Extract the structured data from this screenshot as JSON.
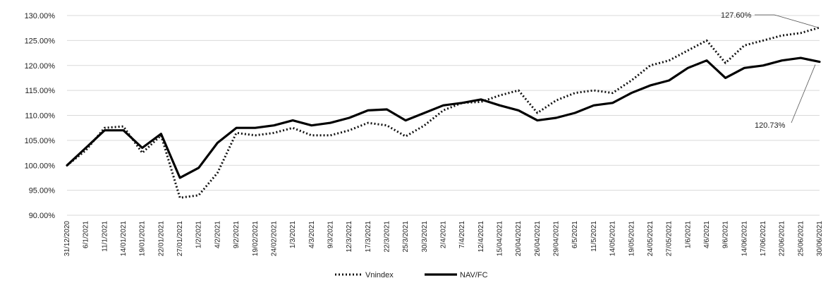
{
  "chart_data": {
    "type": "line",
    "y_tick_labels": [
      "90.00%",
      "95.00%",
      "100.00%",
      "105.00%",
      "110.00%",
      "115.00%",
      "120.00%",
      "125.00%",
      "130.00%"
    ],
    "ylim": [
      90,
      130
    ],
    "grid": "horizontal",
    "legend_position": "bottom-center",
    "x_tick_labels": [
      "31/12/2020",
      "6/1/2021",
      "11/1/2021",
      "14/01/2021",
      "19/01/2021",
      "22/01/2021",
      "27/01/2021",
      "1/2/2021",
      "4/2/2021",
      "9/2/2021",
      "19/02/2021",
      "24/02/2021",
      "1/3/2021",
      "4/3/2021",
      "9/3/2021",
      "12/3/2021",
      "17/3/2021",
      "22/3/2021",
      "25/3/2021",
      "30/3/2021",
      "2/4/2021",
      "7/4/2021",
      "12/4/2021",
      "15/04/2021",
      "20/04/2021",
      "26/04/2021",
      "29/04/2021",
      "6/5/2021",
      "11/5/2021",
      "14/05/2021",
      "19/05/2021",
      "24/05/2021",
      "27/05/2021",
      "1/6/2021",
      "4/6/2021",
      "9/6/2021",
      "14/06/2021",
      "17/06/2021",
      "22/06/2021",
      "25/06/2021",
      "30/06/2021"
    ],
    "series": [
      {
        "name": "Vnindex",
        "style": "dotted",
        "color": "#111111",
        "values": [
          100.0,
          103.0,
          107.5,
          107.8,
          102.5,
          106.0,
          93.5,
          94.0,
          98.5,
          106.5,
          106.0,
          106.5,
          107.5,
          106.0,
          106.0,
          107.0,
          108.5,
          108.0,
          105.8,
          108.0,
          111.0,
          112.5,
          112.7,
          114.0,
          115.0,
          110.5,
          113.0,
          114.5,
          115.0,
          114.5,
          117.0,
          120.0,
          121.0,
          123.0,
          125.0,
          120.5,
          124.0,
          125.0,
          126.0,
          126.5,
          127.6
        ]
      },
      {
        "name": "NAV/FC",
        "style": "solid",
        "color": "#000000",
        "values": [
          100.0,
          103.5,
          107.0,
          107.0,
          103.5,
          106.3,
          97.5,
          99.5,
          104.5,
          107.5,
          107.5,
          108.0,
          109.0,
          108.0,
          108.5,
          109.5,
          111.0,
          111.2,
          109.0,
          110.5,
          112.0,
          112.5,
          113.2,
          112.0,
          111.0,
          109.0,
          109.5,
          110.5,
          112.0,
          112.5,
          114.5,
          116.0,
          117.0,
          119.5,
          121.0,
          117.5,
          119.5,
          120.0,
          121.0,
          121.5,
          120.73
        ]
      }
    ],
    "annotations": [
      {
        "text": "127.60%",
        "series": "Vnindex"
      },
      {
        "text": "120.73%",
        "series": "NAV/FC"
      }
    ]
  }
}
